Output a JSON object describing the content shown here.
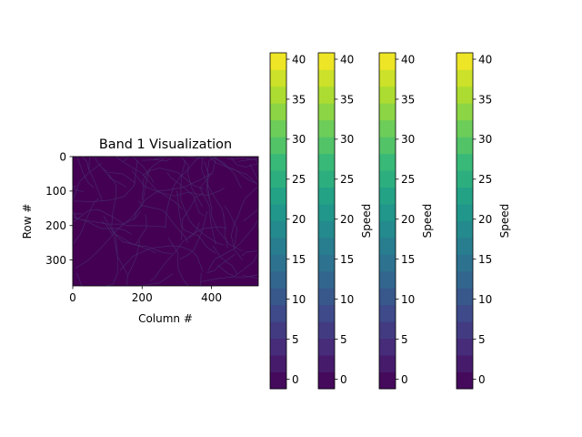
{
  "chart_data": [
    {
      "type": "heatmap",
      "title": "Band 1 Visualization",
      "xlabel": "Column #",
      "ylabel": "Row #",
      "xlim": [
        0,
        535
      ],
      "ylim": [
        0,
        375
      ],
      "y_inverted": true,
      "x_ticks": [
        "0",
        "200",
        "400"
      ],
      "y_ticks": [
        "0",
        "100",
        "200",
        "300"
      ],
      "background_color": "#440154",
      "road_color": "#482f6e",
      "colormap": "viridis"
    },
    {
      "type": "colorbar",
      "label": "",
      "range": [
        -1.2,
        40.8
      ],
      "ticks": [
        "0",
        "5",
        "10",
        "15",
        "20",
        "25",
        "30",
        "35",
        "40"
      ],
      "levels": 20
    },
    {
      "type": "colorbar",
      "label": "Speed",
      "range": [
        -1.2,
        40.8
      ],
      "ticks": [
        "0",
        "5",
        "10",
        "15",
        "20",
        "25",
        "30",
        "35",
        "40"
      ],
      "levels": 20
    },
    {
      "type": "colorbar",
      "label": "Speed",
      "range": [
        -1.2,
        40.8
      ],
      "ticks": [
        "0",
        "5",
        "10",
        "15",
        "20",
        "25",
        "30",
        "35",
        "40"
      ],
      "levels": 20
    },
    {
      "type": "colorbar",
      "label": "Speed",
      "range": [
        -1.2,
        40.8
      ],
      "ticks": [
        "0",
        "5",
        "10",
        "15",
        "20",
        "25",
        "30",
        "35",
        "40"
      ],
      "levels": 20
    }
  ]
}
